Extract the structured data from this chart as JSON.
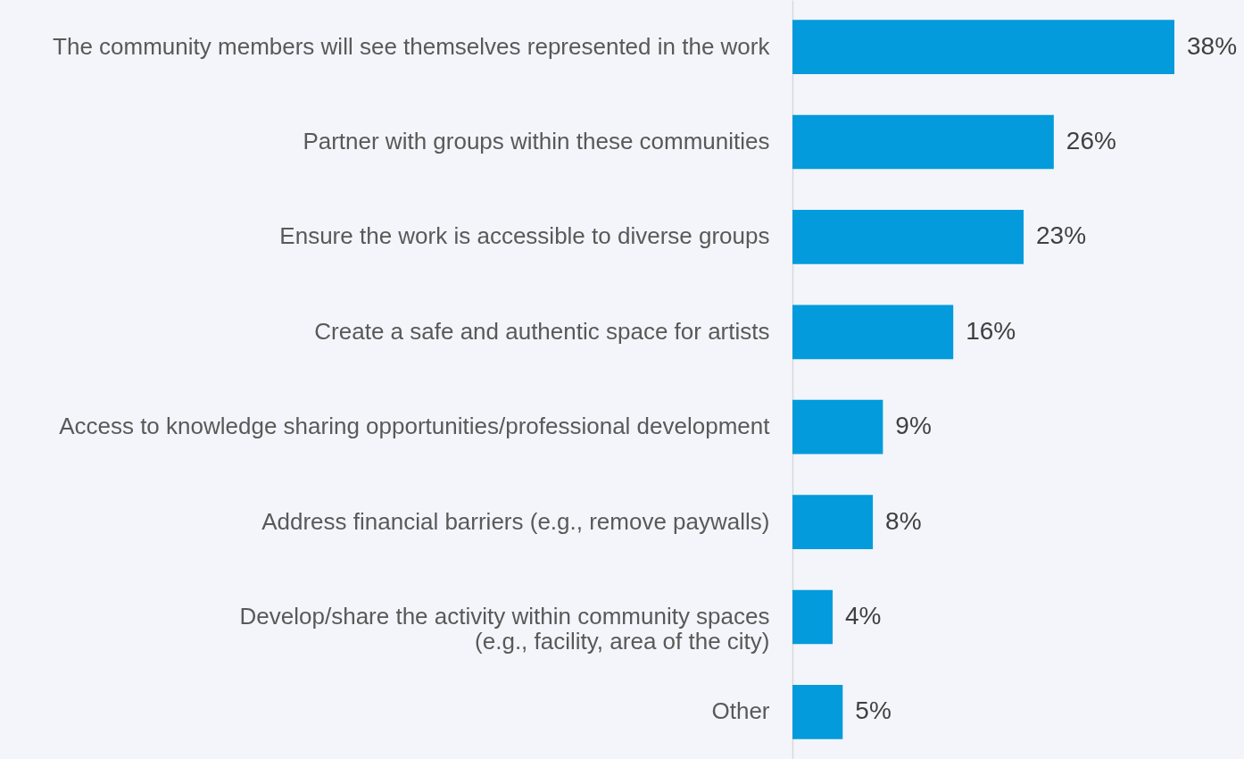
{
  "chart_data": {
    "type": "bar",
    "orientation": "horizontal",
    "tick_labels": "y",
    "categories": [
      "The community members will see themselves represented in the work",
      "Partner with groups within these communities",
      "Ensure the work is accessible to diverse groups",
      "Create a safe and authentic space for artists",
      "Access to knowledge sharing opportunities/professional development",
      "Address financial barriers (e.g., remove paywalls)",
      "Develop/share the activity within community spaces\n(e.g., facility, area of the city)",
      "Other"
    ],
    "value_labels": [
      "38%",
      "26%",
      "23%",
      "16%",
      "9%",
      "8%",
      "4%",
      "5%"
    ],
    "values": [
      38,
      26,
      23,
      16,
      9,
      8,
      4,
      5
    ],
    "color": "#039bdc"
  }
}
